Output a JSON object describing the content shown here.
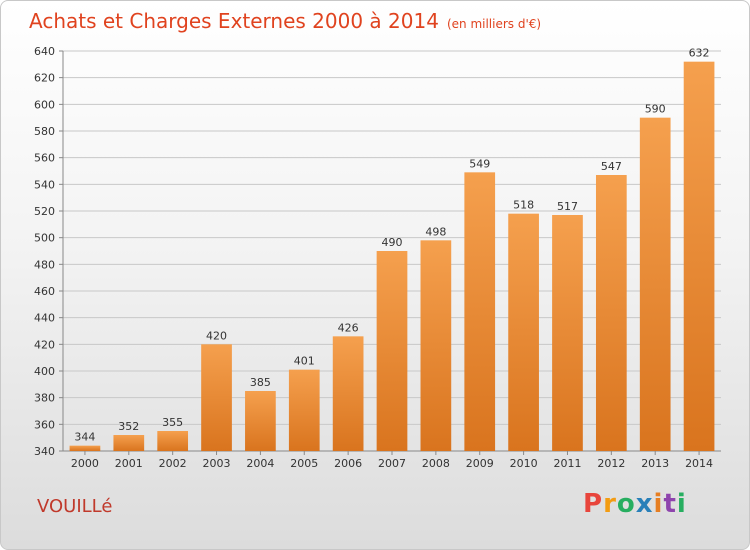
{
  "header": {
    "title": "Achats et Charges Externes 2000 à 2014",
    "unit": "(en milliers d'€)"
  },
  "footer": {
    "commune": "VOUILLé",
    "brand_letters": [
      "P",
      "r",
      "o",
      "x",
      "i",
      "t",
      "i"
    ],
    "brand_colors": [
      "#e8453c",
      "#f39c12",
      "#27ae60",
      "#2980b9",
      "#e67e22",
      "#8e44ad",
      "#27ae60"
    ]
  },
  "colors": {
    "bar_light": "#f5a04e",
    "bar_dark": "#d9741e",
    "title": "#e0431f",
    "grid": "#c8c8c8"
  },
  "chart_data": {
    "type": "bar",
    "title": "Achats et Charges Externes 2000 à 2014",
    "ylabel": "",
    "xlabel": "",
    "categories": [
      "2000",
      "2001",
      "2002",
      "2003",
      "2004",
      "2005",
      "2006",
      "2007",
      "2008",
      "2009",
      "2010",
      "2011",
      "2012",
      "2013",
      "2014"
    ],
    "values": [
      344,
      352,
      355,
      420,
      385,
      401,
      426,
      490,
      498,
      549,
      518,
      517,
      547,
      590,
      632
    ],
    "ylim": [
      340,
      640
    ],
    "yticks": [
      340,
      360,
      380,
      400,
      420,
      440,
      460,
      480,
      500,
      520,
      540,
      560,
      580,
      600,
      620,
      640
    ],
    "grid": true,
    "data_labels": true
  }
}
